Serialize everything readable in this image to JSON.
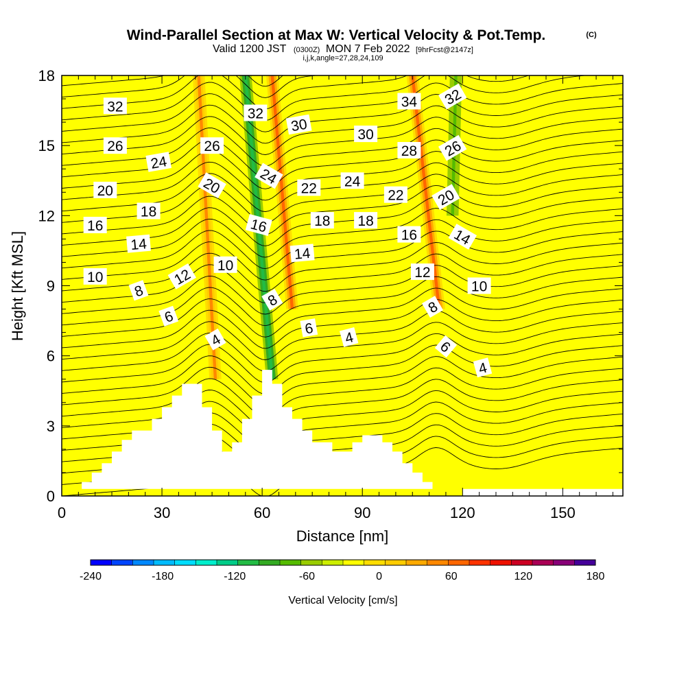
{
  "chart_data": {
    "type": "heatmap",
    "title": "Wind-Parallel Section at Max W: Vertical Velocity & Pot.Temp.",
    "title_mark": "(C)",
    "subtitle": {
      "valid": "Valid 1200 JST",
      "utc": "(0300Z)",
      "date": "MON 7 Feb 2022",
      "forecast": "[9hrFcst@2147z]"
    },
    "grid_info": "i,j,k,angle=27,28,24,109",
    "xlabel": "Distance [nm]",
    "ylabel": "Height [Kft MSL]",
    "xlim": [
      0,
      168
    ],
    "ylim": [
      0,
      18
    ],
    "x_ticks": [
      "0",
      "30",
      "60",
      "90",
      "120",
      "150"
    ],
    "y_ticks": [
      "0",
      "3",
      "6",
      "9",
      "12",
      "15",
      "18"
    ],
    "colorbar": {
      "label": "Vertical Velocity [cm/s]",
      "ticks": [
        "-240",
        "-180",
        "-120",
        "-60",
        "0",
        "60",
        "120",
        "180"
      ],
      "min": -240,
      "max": 180,
      "step": 20,
      "colors": [
        "#0000ff",
        "#0044ff",
        "#0088ff",
        "#00bbff",
        "#00ddff",
        "#00eecc",
        "#00cc88",
        "#22bb44",
        "#33aa22",
        "#55bb00",
        "#99cc00",
        "#ccee00",
        "#ffff00",
        "#ffdd00",
        "#ffcc00",
        "#ffaa00",
        "#ff8800",
        "#ff6600",
        "#ff3300",
        "#ee1100",
        "#cc0022",
        "#aa0055",
        "#880077",
        "#440099"
      ]
    },
    "background_w_value": 10,
    "updraft_bands": [
      {
        "x_bottom": 46,
        "x_top": 41,
        "h_bottom": 5,
        "h_top": 18,
        "w": 80
      },
      {
        "x_bottom": 63,
        "x_top": 55,
        "h_bottom": 5,
        "h_top": 18,
        "w": -100
      },
      {
        "x_bottom": 69,
        "x_top": 63,
        "h_bottom": 8,
        "h_top": 18,
        "w": 100
      },
      {
        "x_bottom": 113,
        "x_top": 105,
        "h_bottom": 8,
        "h_top": 18,
        "w": 100
      },
      {
        "x_bottom": 117,
        "x_top": 118,
        "h_bottom": 12,
        "h_top": 18,
        "w": -60
      }
    ],
    "terrain": [
      [
        0,
        0.3
      ],
      [
        6,
        0.3
      ],
      [
        6,
        0.6
      ],
      [
        9,
        0.6
      ],
      [
        9,
        1
      ],
      [
        12,
        1
      ],
      [
        12,
        1.4
      ],
      [
        15,
        1.4
      ],
      [
        15,
        1.9
      ],
      [
        18,
        1.9
      ],
      [
        18,
        2.4
      ],
      [
        21,
        2.4
      ],
      [
        21,
        2.8
      ],
      [
        27,
        2.8
      ],
      [
        27,
        3.3
      ],
      [
        30,
        3.3
      ],
      [
        30,
        3.8
      ],
      [
        33,
        3.8
      ],
      [
        33,
        4.3
      ],
      [
        36,
        4.3
      ],
      [
        36,
        4.8
      ],
      [
        42,
        4.8
      ],
      [
        42,
        3.8
      ],
      [
        45,
        3.8
      ],
      [
        45,
        2.8
      ],
      [
        48,
        2.8
      ],
      [
        48,
        1.9
      ],
      [
        51,
        1.9
      ],
      [
        51,
        2.3
      ],
      [
        54,
        2.3
      ],
      [
        54,
        3.3
      ],
      [
        57,
        3.3
      ],
      [
        57,
        4.3
      ],
      [
        60,
        4.3
      ],
      [
        60,
        5.4
      ],
      [
        63,
        5.4
      ],
      [
        63,
        4.8
      ],
      [
        66,
        4.8
      ],
      [
        66,
        3.8
      ],
      [
        69,
        3.8
      ],
      [
        69,
        3.3
      ],
      [
        72,
        3.3
      ],
      [
        72,
        2.8
      ],
      [
        75,
        2.8
      ],
      [
        75,
        2.3
      ],
      [
        81,
        2.3
      ],
      [
        81,
        1.9
      ],
      [
        87,
        1.9
      ],
      [
        87,
        2.3
      ],
      [
        90,
        2.3
      ],
      [
        90,
        2.6
      ],
      [
        96,
        2.6
      ],
      [
        96,
        2.3
      ],
      [
        99,
        2.3
      ],
      [
        99,
        1.9
      ],
      [
        102,
        1.9
      ],
      [
        102,
        1.4
      ],
      [
        105,
        1.4
      ],
      [
        105,
        1
      ],
      [
        108,
        1
      ],
      [
        108,
        0.6
      ],
      [
        111,
        0.6
      ],
      [
        111,
        0.3
      ],
      [
        120,
        0.3
      ],
      [
        120,
        0
      ],
      [
        168,
        0
      ],
      [
        168,
        0.3
      ],
      [
        0,
        0.3
      ]
    ],
    "isentropes": {
      "levels": [
        0,
        2,
        4,
        6,
        8,
        10,
        12,
        14,
        16,
        18,
        20,
        22,
        24,
        26,
        28,
        30,
        32,
        34,
        36
      ],
      "labels": [
        {
          "text": "32",
          "x": 16,
          "h": 16.7,
          "angle": 0
        },
        {
          "text": "26",
          "x": 16,
          "h": 15.0,
          "angle": 0
        },
        {
          "text": "24",
          "x": 29,
          "h": 14.3,
          "angle": -10
        },
        {
          "text": "20",
          "x": 13,
          "h": 13.1,
          "angle": 0
        },
        {
          "text": "18",
          "x": 26,
          "h": 12.2,
          "angle": 0
        },
        {
          "text": "16",
          "x": 10,
          "h": 11.6,
          "angle": 0
        },
        {
          "text": "14",
          "x": 23,
          "h": 10.8,
          "angle": -5
        },
        {
          "text": "10",
          "x": 10,
          "h": 9.4,
          "angle": 0
        },
        {
          "text": "12",
          "x": 36,
          "h": 9.4,
          "angle": -30
        },
        {
          "text": "8",
          "x": 23,
          "h": 8.8,
          "angle": -20
        },
        {
          "text": "6",
          "x": 32,
          "h": 7.7,
          "angle": -20
        },
        {
          "text": "4",
          "x": 46,
          "h": 6.7,
          "angle": -30
        },
        {
          "text": "26",
          "x": 45,
          "h": 15.0,
          "angle": 0
        },
        {
          "text": "20",
          "x": 45,
          "h": 13.3,
          "angle": 30
        },
        {
          "text": "10",
          "x": 49,
          "h": 9.9,
          "angle": 0
        },
        {
          "text": "32",
          "x": 58,
          "h": 16.4,
          "angle": 0
        },
        {
          "text": "24",
          "x": 62,
          "h": 13.7,
          "angle": 30
        },
        {
          "text": "16",
          "x": 59,
          "h": 11.6,
          "angle": 15
        },
        {
          "text": "8",
          "x": 63,
          "h": 8.4,
          "angle": -30
        },
        {
          "text": "30",
          "x": 71,
          "h": 15.9,
          "angle": -10
        },
        {
          "text": "22",
          "x": 74,
          "h": 13.2,
          "angle": 0
        },
        {
          "text": "18",
          "x": 78,
          "h": 11.8,
          "angle": 0
        },
        {
          "text": "14",
          "x": 72,
          "h": 10.4,
          "angle": -5
        },
        {
          "text": "6",
          "x": 74,
          "h": 7.2,
          "angle": -10
        },
        {
          "text": "4",
          "x": 86,
          "h": 6.8,
          "angle": -15
        },
        {
          "text": "30",
          "x": 91,
          "h": 15.5,
          "angle": 0
        },
        {
          "text": "24",
          "x": 87,
          "h": 13.5,
          "angle": 0
        },
        {
          "text": "18",
          "x": 91,
          "h": 11.8,
          "angle": 0
        },
        {
          "text": "34",
          "x": 104,
          "h": 16.9,
          "angle": 0
        },
        {
          "text": "28",
          "x": 104,
          "h": 14.8,
          "angle": 0
        },
        {
          "text": "22",
          "x": 100,
          "h": 12.9,
          "angle": 0
        },
        {
          "text": "16",
          "x": 104,
          "h": 11.2,
          "angle": 0
        },
        {
          "text": "12",
          "x": 108,
          "h": 9.6,
          "angle": 0
        },
        {
          "text": "8",
          "x": 111,
          "h": 8.1,
          "angle": -30
        },
        {
          "text": "6",
          "x": 115,
          "h": 6.4,
          "angle": 40
        },
        {
          "text": "4",
          "x": 126,
          "h": 5.5,
          "angle": -15
        },
        {
          "text": "32",
          "x": 117,
          "h": 17.1,
          "angle": -30
        },
        {
          "text": "26",
          "x": 117,
          "h": 14.9,
          "angle": -30
        },
        {
          "text": "20",
          "x": 115,
          "h": 12.8,
          "angle": -30
        },
        {
          "text": "14",
          "x": 120,
          "h": 11.1,
          "angle": 30
        },
        {
          "text": "10",
          "x": 125,
          "h": 9.0,
          "angle": 0
        }
      ]
    }
  }
}
